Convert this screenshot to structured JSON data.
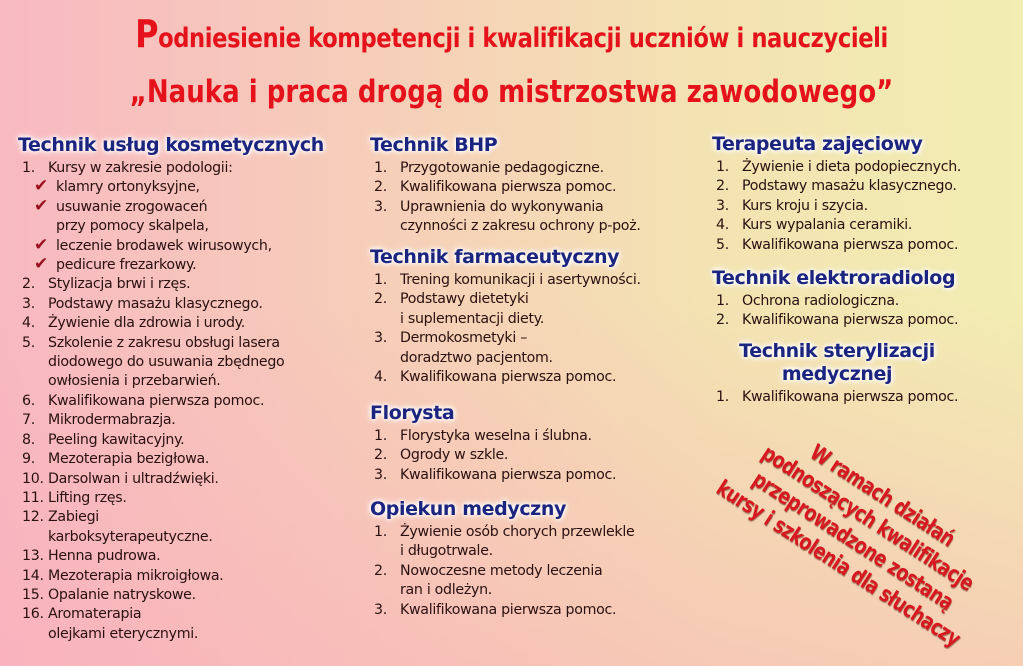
{
  "title": {
    "line1_initial": "P",
    "line1_rest": "odniesienie kompetencji i kwalifikacji uczniów i nauczycieli",
    "line2": "„Nauka i praca drogą do mistrzostwa zawodowego”"
  },
  "sections": {
    "kosmetyczny": {
      "heading": "Technik usług kosmetycznych",
      "items": [
        {
          "num": "1.",
          "text": "Kursy w zakresie podologii:",
          "subs": [
            "klamry ortonyksyjne,",
            "usuwanie zrogowaceń\nprzy pomocy skalpela,",
            "leczenie brodawek wirusowych,",
            "pedicure frezarkowy."
          ]
        },
        {
          "num": "2.",
          "text": "Stylizacja brwi i rzęs."
        },
        {
          "num": "3.",
          "text": "Podstawy masażu klasycznego."
        },
        {
          "num": "4.",
          "text": "Żywienie dla zdrowia i urody."
        },
        {
          "num": "5.",
          "text": "Szkolenie z zakresu obsługi lasera\ndiodowego do usuwania zbędnego\nowłosienia i przebarwień."
        },
        {
          "num": "6.",
          "text": "Kwalifikowana pierwsza pomoc."
        },
        {
          "num": "7.",
          "text": "Mikrodermabrazja."
        },
        {
          "num": "8.",
          "text": "Peeling kawitacyjny."
        },
        {
          "num": "9.",
          "text": "Mezoterapia bezigłowa."
        },
        {
          "num": "10.",
          "text": "Darsolwan i ultradźwięki."
        },
        {
          "num": "11.",
          "text": "Lifting rzęs."
        },
        {
          "num": "12.",
          "text": "Zabiegi\nkarboksyterapeutyczne."
        },
        {
          "num": "13.",
          "text": "Henna pudrowa."
        },
        {
          "num": "14.",
          "text": "Mezoterapia mikroigłowa."
        },
        {
          "num": "15.",
          "text": "Opalanie natryskowe."
        },
        {
          "num": "16.",
          "text": "Aromaterapia\nolejkami eterycznymi."
        }
      ]
    },
    "bhp": {
      "heading": "Technik BHP",
      "items": [
        {
          "num": "1.",
          "text": "Przygotowanie pedagogiczne."
        },
        {
          "num": "2.",
          "text": "Kwalifikowana pierwsza pomoc."
        },
        {
          "num": "3.",
          "text": "Uprawnienia do wykonywania\nczynności z zakresu ochrony p-poż."
        }
      ]
    },
    "farmaceutyczny": {
      "heading": "Technik farmaceutyczny",
      "items": [
        {
          "num": "1.",
          "text": "Trening komunikacji i asertywności."
        },
        {
          "num": "2.",
          "text": "Podstawy dietetyki\ni suplementacji diety."
        },
        {
          "num": "3.",
          "text": "Dermokosmetyki –\ndoradztwo pacjentom."
        },
        {
          "num": "4.",
          "text": "Kwalifikowana pierwsza pomoc."
        }
      ]
    },
    "florysta": {
      "heading": "Florysta",
      "items": [
        {
          "num": "1.",
          "text": "Florystyka weselna i ślubna."
        },
        {
          "num": "2.",
          "text": "Ogrody w szkle."
        },
        {
          "num": "3.",
          "text": "Kwalifikowana pierwsza pomoc."
        }
      ]
    },
    "opiekun": {
      "heading": "Opiekun medyczny",
      "items": [
        {
          "num": "1.",
          "text": "Żywienie osób chorych przewlekle\ni długotrwale."
        },
        {
          "num": "2.",
          "text": "Nowoczesne metody leczenia\nran i odleżyn."
        },
        {
          "num": "3.",
          "text": "Kwalifikowana pierwsza pomoc."
        }
      ]
    },
    "terapeuta": {
      "heading": "Terapeuta zajęciowy",
      "items": [
        {
          "num": "1.",
          "text": "Żywienie i dieta podopiecznych."
        },
        {
          "num": "2.",
          "text": "Podstawy masażu klasycznego."
        },
        {
          "num": "3.",
          "text": "Kurs kroju i szycia."
        },
        {
          "num": "4.",
          "text": "Kurs wypalania ceramiki."
        },
        {
          "num": "5.",
          "text": "Kwalifikowana pierwsza pomoc."
        }
      ]
    },
    "elektroradiolog": {
      "heading": "Technik elektroradiolog",
      "items": [
        {
          "num": "1.",
          "text": "Ochrona radiologiczna."
        },
        {
          "num": "2.",
          "text": "Kwalifikowana pierwsza pomoc."
        }
      ]
    },
    "sterylizacja": {
      "heading": "Technik sterylizacji\nmedycznej",
      "items": [
        {
          "num": "1.",
          "text": "Kwalifikowana pierwsza pomoc."
        }
      ]
    }
  },
  "slogan": "W ramach działań\npodnoszących kwalifikacje\nprzeprowadzone zostaną\nkursy i szkolenia dla słuchaczy",
  "colors": {
    "title": "#e5111b",
    "heading": "#1b2580",
    "checkmark": "#9a1020",
    "slogan": "#d71820"
  },
  "icons": {
    "bullet": "checkmark-icon"
  }
}
